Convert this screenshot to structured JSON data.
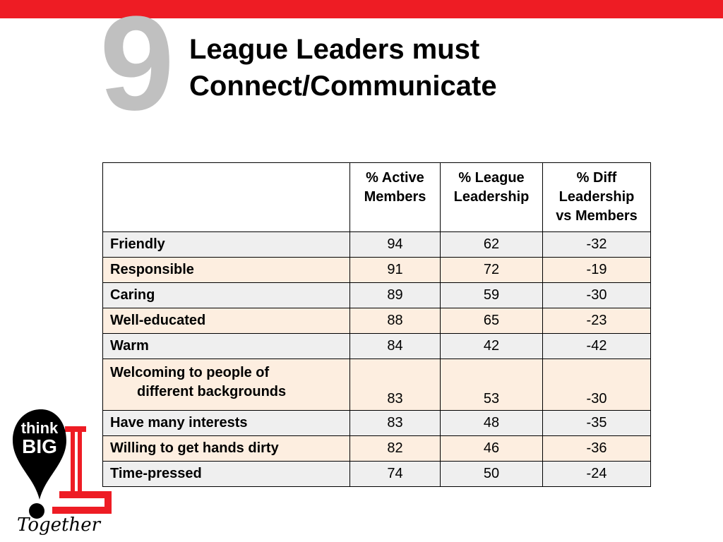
{
  "slide": {
    "number": "9",
    "title_lines": [
      "League Leaders must",
      "Connect/Communicate"
    ]
  },
  "table": {
    "headers": [
      "",
      "% Active Members",
      "% League Leadership",
      "% Diff Leadership vs Members"
    ],
    "header_lines": {
      "active": [
        "% Active",
        "Members"
      ],
      "leadership": [
        "% League",
        "Leadership"
      ],
      "diff": [
        "% Diff",
        "Leadership",
        "vs Members"
      ]
    },
    "rows": [
      {
        "label": "Friendly",
        "active": "94",
        "leadership": "62",
        "diff": "-32"
      },
      {
        "label": "Responsible",
        "active": "91",
        "leadership": "72",
        "diff": "-19"
      },
      {
        "label": "Caring",
        "active": "89",
        "leadership": "59",
        "diff": "-30"
      },
      {
        "label": "Well-educated",
        "active": "88",
        "leadership": "65",
        "diff": "-23"
      },
      {
        "label": "Warm",
        "active": "84",
        "leadership": "42",
        "diff": "-42"
      },
      {
        "label_lines": [
          "Welcoming to people of",
          "different backgrounds"
        ],
        "active": "83",
        "leadership": "53",
        "diff": "-30"
      },
      {
        "label": "Have many interests",
        "active": "83",
        "leadership": "48",
        "diff": "-35"
      },
      {
        "label": "Willing to get hands dirty",
        "active": "82",
        "leadership": "46",
        "diff": "-36"
      },
      {
        "label": "Time-pressed",
        "active": "74",
        "leadership": "50",
        "diff": "-24"
      }
    ]
  },
  "logo": {
    "line1": "think",
    "line2": "BIG",
    "script": "Together"
  },
  "colors": {
    "accent_red": "#ee1c24",
    "number_gray": "#c0c0c0",
    "row_gray": "#efefef",
    "row_peach": "#fdeee0"
  }
}
